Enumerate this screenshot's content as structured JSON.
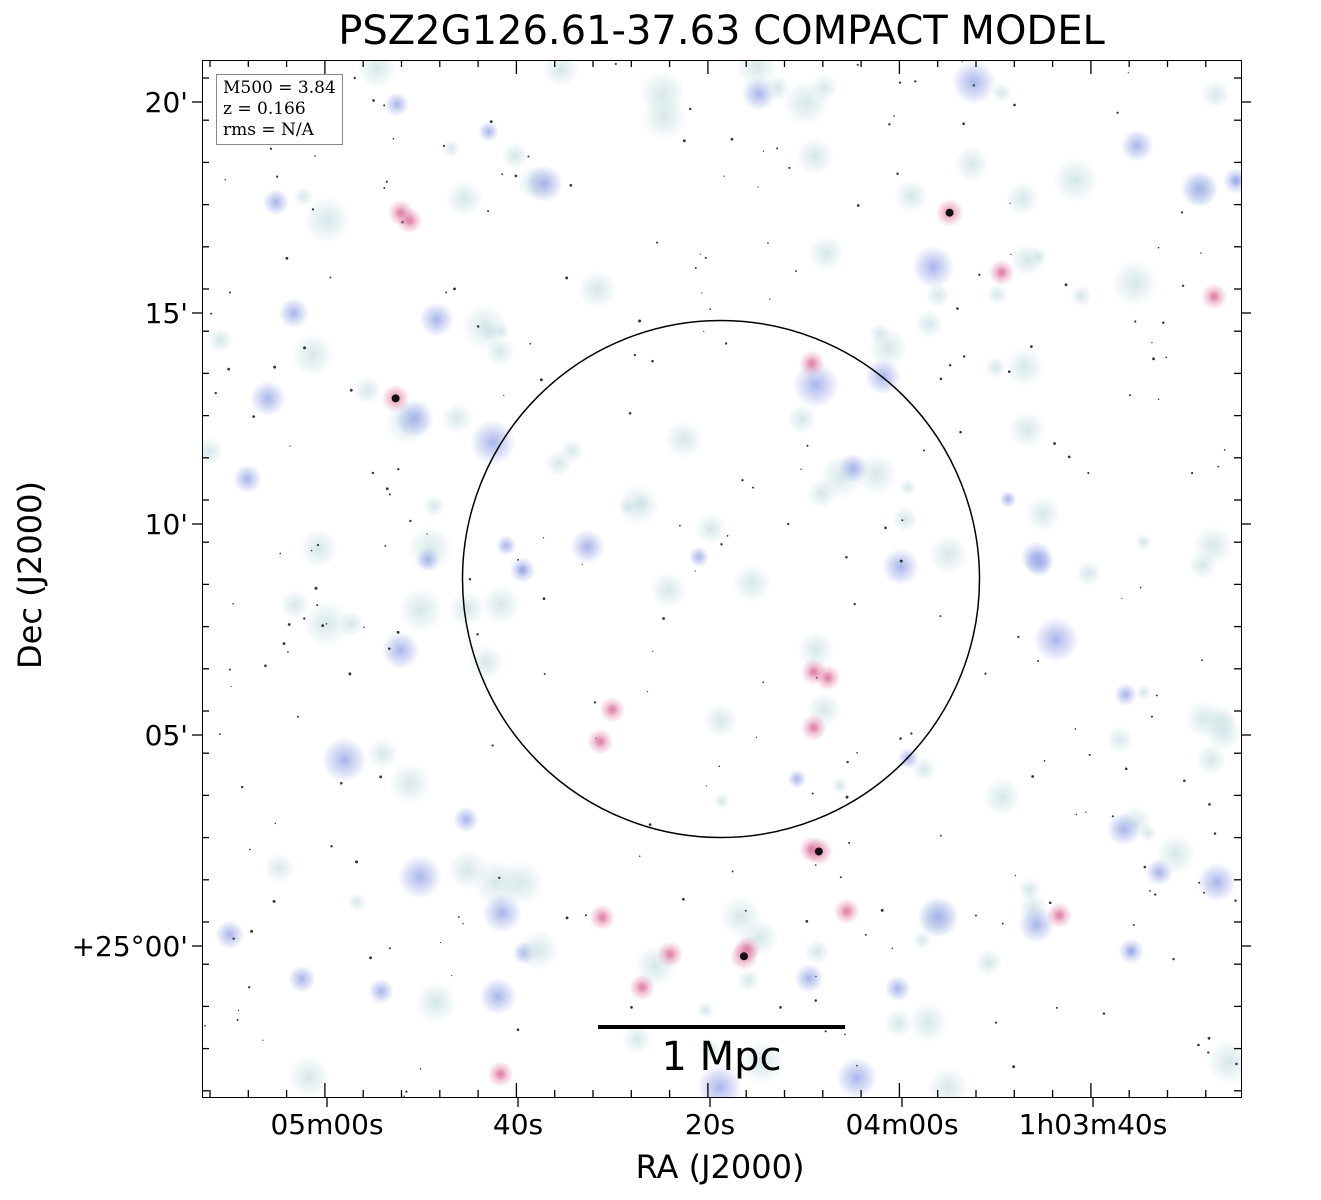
{
  "title": "PSZ2G126.61-37.63 COMPACT MODEL",
  "info": {
    "m500": "M500 = 3.84",
    "z": "z = 0.166",
    "rms": "rms = N/A"
  },
  "axes": {
    "xlabel": "RA (J2000)",
    "ylabel": "Dec (J2000)",
    "x_ticks": [
      "05m00s",
      "40s",
      "20s",
      "04m00s",
      "1h03m40s"
    ],
    "y_ticks": [
      "20'",
      "15'",
      "10'",
      "05'",
      "+25°00'"
    ]
  },
  "scale_bar": {
    "label": "1 Mpc"
  },
  "colors": {
    "halo": "#cfe3e6",
    "source_blue": "#9aa8e8",
    "source_pink": "#e07fa6",
    "core": "#111111"
  }
}
